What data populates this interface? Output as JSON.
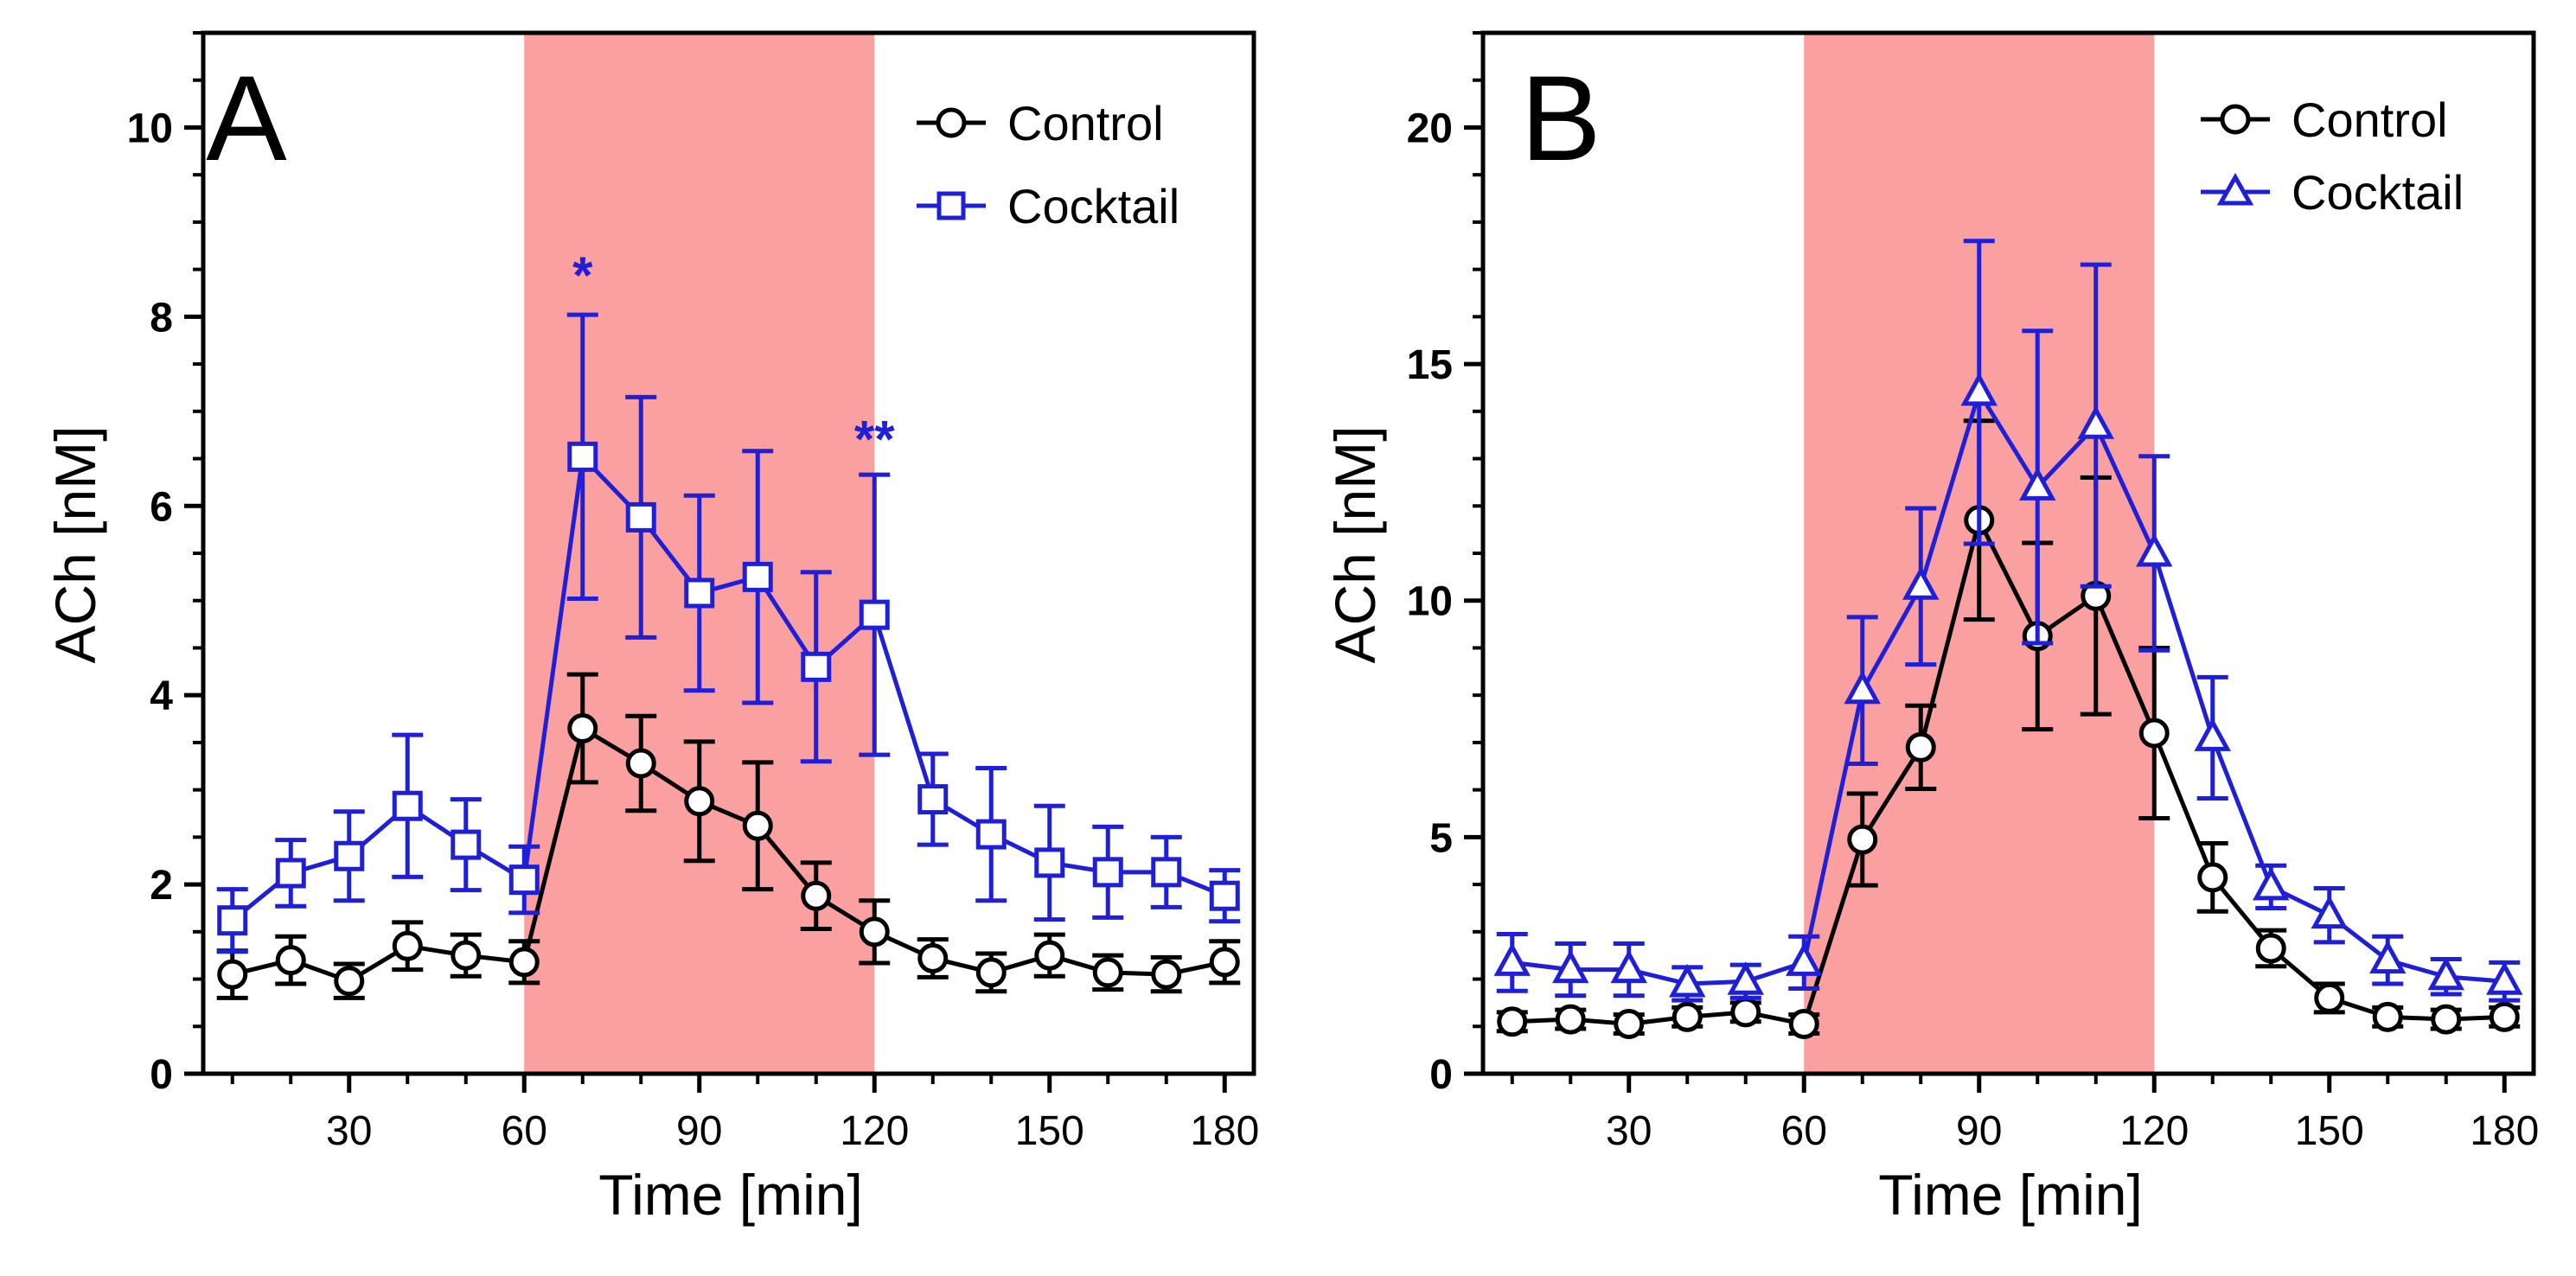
{
  "chart_data": [
    {
      "panel": "A",
      "type": "line",
      "title": "",
      "panel_label": "A",
      "xlabel": "Time [min]",
      "ylabel": "ACh [nM]",
      "xlim": [
        5,
        185
      ],
      "ylim": [
        0,
        11
      ],
      "xticks": [
        30,
        60,
        90,
        120,
        150,
        180
      ],
      "xtick_labels": [
        "30",
        "60",
        "90",
        "120",
        "150",
        "180"
      ],
      "yticks": [
        0,
        2,
        4,
        6,
        8,
        10
      ],
      "ytick_labels": [
        "0",
        "2",
        "4",
        "6",
        "8",
        "10"
      ],
      "y_minor_step": 0.5,
      "shaded_region": {
        "x_start": 60,
        "x_end": 120,
        "color": "#fba0a0"
      },
      "x": [
        10,
        20,
        30,
        40,
        50,
        60,
        70,
        80,
        90,
        100,
        110,
        120,
        130,
        140,
        150,
        160,
        170,
        180
      ],
      "series": [
        {
          "name": "Control",
          "color": "#000000",
          "marker": "circle",
          "values": [
            1.05,
            1.2,
            0.98,
            1.35,
            1.25,
            1.18,
            3.65,
            3.28,
            2.88,
            2.62,
            1.88,
            1.5,
            1.22,
            1.07,
            1.25,
            1.07,
            1.05,
            1.18
          ],
          "errors": [
            0.25,
            0.25,
            0.18,
            0.25,
            0.22,
            0.22,
            0.57,
            0.5,
            0.63,
            0.67,
            0.35,
            0.33,
            0.2,
            0.2,
            0.22,
            0.18,
            0.18,
            0.22
          ]
        },
        {
          "name": "Cocktail",
          "color": "#1f1fd8",
          "marker": "square",
          "values": [
            1.62,
            2.12,
            2.3,
            2.83,
            2.42,
            2.05,
            6.52,
            5.88,
            5.08,
            5.25,
            4.3,
            4.85,
            2.9,
            2.53,
            2.23,
            2.13,
            2.13,
            1.88
          ],
          "errors": [
            0.33,
            0.35,
            0.47,
            0.75,
            0.48,
            0.35,
            1.5,
            1.27,
            1.03,
            1.33,
            1.0,
            1.48,
            0.48,
            0.7,
            0.6,
            0.48,
            0.37,
            0.27
          ]
        }
      ],
      "annotations": [
        {
          "x": 70,
          "y": 8.45,
          "text": "*",
          "color": "#1f1fd8"
        },
        {
          "x": 120,
          "y": 6.72,
          "text": "**",
          "color": "#1f1fd8"
        }
      ],
      "legend": {
        "position": "top-right",
        "entries": [
          "Control",
          "Cocktail"
        ]
      }
    },
    {
      "panel": "B",
      "type": "line",
      "title": "",
      "panel_label": "B",
      "xlabel": "Time [min]",
      "ylabel": "ACh [nM]",
      "xlim": [
        5,
        185
      ],
      "ylim": [
        0,
        22
      ],
      "xticks": [
        30,
        60,
        90,
        120,
        150,
        180
      ],
      "xtick_labels": [
        "30",
        "60",
        "90",
        "120",
        "150",
        "180"
      ],
      "yticks": [
        0,
        5,
        10,
        15,
        20
      ],
      "ytick_labels": [
        "0",
        "5",
        "10",
        "15",
        "20"
      ],
      "y_minor_step": 1,
      "shaded_region": {
        "x_start": 60,
        "x_end": 120,
        "color": "#fba0a0"
      },
      "x": [
        10,
        20,
        30,
        40,
        50,
        60,
        70,
        80,
        90,
        100,
        110,
        120,
        130,
        140,
        150,
        160,
        170,
        180
      ],
      "series": [
        {
          "name": "Control",
          "color": "#000000",
          "marker": "circle",
          "values": [
            1.1,
            1.15,
            1.05,
            1.2,
            1.3,
            1.05,
            4.95,
            6.9,
            11.7,
            9.25,
            10.1,
            7.2,
            4.15,
            2.65,
            1.6,
            1.2,
            1.15,
            1.2
          ],
          "errors": [
            0.2,
            0.2,
            0.2,
            0.2,
            0.2,
            0.2,
            0.97,
            0.88,
            2.1,
            1.97,
            2.5,
            1.8,
            0.72,
            0.38,
            0.3,
            0.2,
            0.2,
            0.2
          ]
        },
        {
          "name": "Cocktail",
          "color": "#1f1fd8",
          "marker": "triangle",
          "values": [
            2.35,
            2.2,
            2.2,
            1.9,
            1.95,
            2.35,
            8.1,
            10.3,
            14.4,
            12.4,
            13.7,
            11.0,
            7.1,
            3.95,
            3.35,
            2.4,
            2.05,
            1.95
          ],
          "errors": [
            0.6,
            0.55,
            0.55,
            0.35,
            0.35,
            0.55,
            1.55,
            1.65,
            3.2,
            3.3,
            3.4,
            2.05,
            1.28,
            0.45,
            0.57,
            0.5,
            0.37,
            0.4
          ]
        }
      ],
      "annotations": [],
      "legend": {
        "position": "top-right",
        "entries": [
          "Control",
          "Cocktail"
        ]
      }
    }
  ]
}
